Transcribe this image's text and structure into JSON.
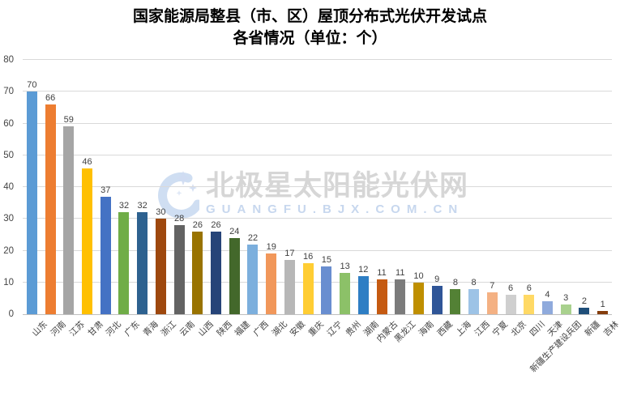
{
  "title": {
    "line1": "国家能源局整县（市、区）屋顶分布式光伏开发试点",
    "line2": "各省情况（单位：个）"
  },
  "watermark": {
    "brand": "北极星太阳能光伏网",
    "domain": "GUANGFU.BJX.COM.CN",
    "logo_icon": "crescent-moon-with-sparkles",
    "brand_color": "#d6d6d6",
    "domain_color": "#c7d7ee",
    "logo_color": "#c7d8f0"
  },
  "chart_data": {
    "type": "bar",
    "title": "国家能源局整县（市、区）屋顶分布式光伏开发试点",
    "subtitle": "各省情况（单位：个）",
    "categories": [
      "山东",
      "河南",
      "江苏",
      "甘肃",
      "河北",
      "广东",
      "青海",
      "浙江",
      "云南",
      "山西",
      "陕西",
      "福建",
      "广西",
      "湖北",
      "安徽",
      "重庆",
      "辽宁",
      "贵州",
      "湖南",
      "内蒙古",
      "黑龙江",
      "海南",
      "西藏",
      "上海",
      "江西",
      "宁夏",
      "北京",
      "四川",
      "天津",
      "新疆生产建设兵团",
      "新疆",
      "吉林"
    ],
    "values": [
      70,
      66,
      59,
      46,
      37,
      32,
      32,
      30,
      28,
      26,
      26,
      24,
      22,
      19,
      17,
      16,
      15,
      13,
      12,
      11,
      11,
      10,
      9,
      8,
      8,
      7,
      6,
      6,
      4,
      3,
      2,
      1
    ],
    "bar_colors": [
      "#5B9BD5",
      "#ED7D31",
      "#A5A5A5",
      "#FFC000",
      "#4472C4",
      "#70AD47",
      "#2D618F",
      "#9E480E",
      "#636363",
      "#997300",
      "#264478",
      "#43682B",
      "#7CAFDD",
      "#F1975A",
      "#B7B7B7",
      "#FFCD33",
      "#698ED0",
      "#8CC168",
      "#2E7EC4",
      "#C55A11",
      "#7B7B7B",
      "#BF8F00",
      "#2F5597",
      "#538135",
      "#9DC3E6",
      "#F4B183",
      "#CFCFCF",
      "#FFD965",
      "#8FAADC",
      "#A9D18E",
      "#1F4E79",
      "#843C0C"
    ],
    "ylim": [
      0,
      80
    ],
    "y_ticks": [
      0,
      10,
      20,
      30,
      40,
      50,
      60,
      70,
      80
    ],
    "xlabel": "",
    "ylabel": "",
    "grid": true,
    "data_labels": true,
    "legend": "none",
    "x_label_rotation_deg": -45
  },
  "style": {
    "background": "#ffffff",
    "title_color": "#000000",
    "gridline_color": "#d9d9d9",
    "axis_line_color": "#bfbfbf",
    "tick_label_color": "#444444",
    "value_label_color": "#3f3f3f"
  }
}
